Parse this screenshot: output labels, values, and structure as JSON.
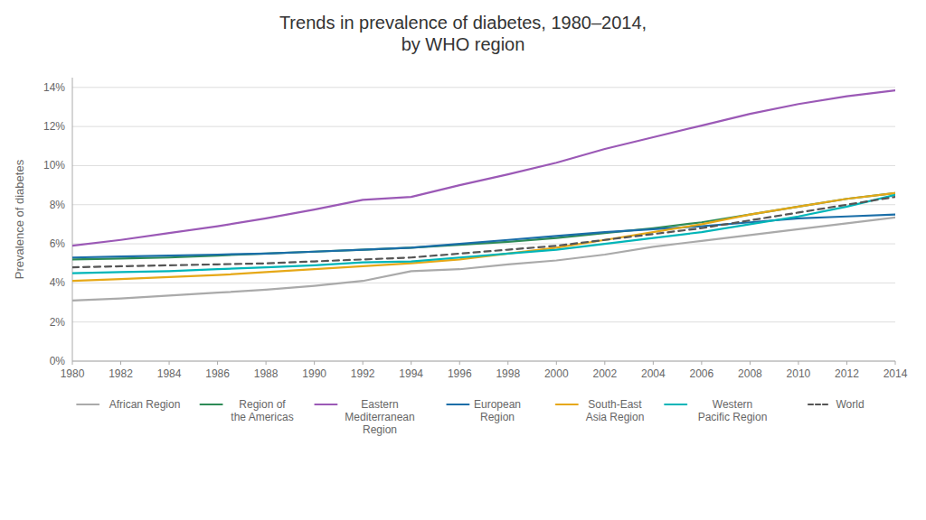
{
  "chart_data": {
    "type": "line",
    "title": "Trends in prevalence of diabetes, 1980–2014,\nby WHO region",
    "y_label": "Prevalence of diabetes",
    "x": [
      1980,
      1982,
      1984,
      1986,
      1988,
      1990,
      1992,
      1994,
      1996,
      1998,
      2000,
      2002,
      2004,
      2006,
      2008,
      2010,
      2012,
      2014
    ],
    "xlim": [
      1980,
      2014
    ],
    "xticks": [
      1980,
      1982,
      1984,
      1986,
      1988,
      1990,
      1992,
      1994,
      1996,
      1998,
      2000,
      2002,
      2004,
      2006,
      2008,
      2010,
      2012,
      2014
    ],
    "ylim": [
      0,
      14.5
    ],
    "yticks": [
      {
        "value": 0,
        "label": "0%"
      },
      {
        "value": 2,
        "label": "2%"
      },
      {
        "value": 4,
        "label": "4%"
      },
      {
        "value": 6,
        "label": "6%"
      },
      {
        "value": 8,
        "label": "8%"
      },
      {
        "value": 10,
        "label": "10%"
      },
      {
        "value": 12,
        "label": "12%"
      },
      {
        "value": 14,
        "label": "14%"
      }
    ],
    "grid": true,
    "legend": "bottom",
    "series": [
      {
        "name": "African Region",
        "color": "#aaaaaa",
        "line_style": "solid",
        "values": [
          3.1,
          3.2,
          3.35,
          3.5,
          3.65,
          3.85,
          4.1,
          4.6,
          4.7,
          4.95,
          5.15,
          5.45,
          5.85,
          6.15,
          6.45,
          6.75,
          7.05,
          7.35
        ]
      },
      {
        "name": "Region of\nthe Americas",
        "color": "#2e8b57",
        "line_style": "solid",
        "values": [
          5.2,
          5.25,
          5.3,
          5.4,
          5.5,
          5.6,
          5.7,
          5.8,
          5.95,
          6.1,
          6.3,
          6.55,
          6.8,
          7.1,
          7.5,
          7.9,
          8.3,
          8.6
        ]
      },
      {
        "name": "Eastern\nMediterranean\nRegion",
        "color": "#9b59b6",
        "line_style": "solid",
        "values": [
          5.9,
          6.2,
          6.55,
          6.9,
          7.3,
          7.75,
          8.25,
          8.4,
          9.0,
          9.55,
          10.15,
          10.85,
          11.45,
          12.05,
          12.65,
          13.15,
          13.55,
          13.85
        ]
      },
      {
        "name": "European\nRegion",
        "color": "#1a6ea8",
        "line_style": "solid",
        "values": [
          5.3,
          5.35,
          5.4,
          5.45,
          5.5,
          5.6,
          5.7,
          5.8,
          6.0,
          6.2,
          6.4,
          6.6,
          6.75,
          6.9,
          7.1,
          7.3,
          7.4,
          7.5
        ]
      },
      {
        "name": "South-East\nAsia Region",
        "color": "#e6a817",
        "line_style": "solid",
        "values": [
          4.1,
          4.2,
          4.3,
          4.4,
          4.55,
          4.7,
          4.85,
          5.0,
          5.2,
          5.5,
          5.8,
          6.2,
          6.6,
          7.0,
          7.5,
          7.9,
          8.3,
          8.6
        ]
      },
      {
        "name": "Western\nPacific Region",
        "color": "#00b5b8",
        "line_style": "solid",
        "values": [
          4.5,
          4.55,
          4.6,
          4.7,
          4.8,
          4.9,
          5.05,
          5.1,
          5.3,
          5.5,
          5.7,
          6.0,
          6.3,
          6.6,
          7.0,
          7.4,
          7.9,
          8.5
        ]
      },
      {
        "name": "World",
        "color": "#555555",
        "line_style": "dashed",
        "values": [
          4.8,
          4.85,
          4.9,
          4.95,
          5.0,
          5.1,
          5.2,
          5.3,
          5.5,
          5.7,
          5.9,
          6.2,
          6.5,
          6.8,
          7.2,
          7.6,
          8.0,
          8.4
        ]
      }
    ]
  }
}
